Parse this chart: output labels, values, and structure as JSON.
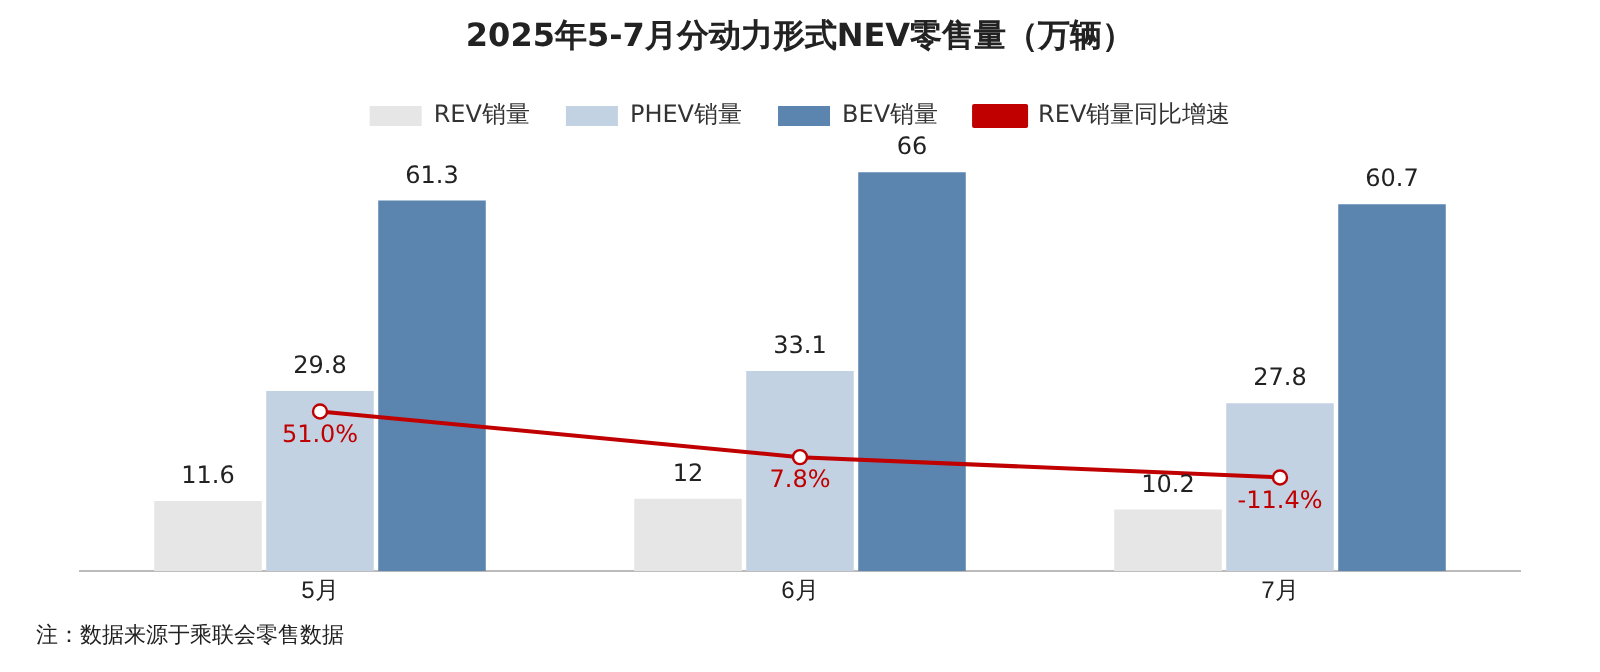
{
  "chart_data": {
    "type": "bar",
    "title": "2025年5-7月分动力形式NEV零售量（万辆）",
    "categories": [
      "5月",
      "6月",
      "7月"
    ],
    "series": [
      {
        "name": "REV销量",
        "color": "#e6e6e6",
        "values": [
          11.6,
          12,
          10.2
        ]
      },
      {
        "name": "PHEV销量",
        "color": "#c3d2e2",
        "values": [
          29.8,
          33.1,
          27.8
        ]
      },
      {
        "name": "BEV销量",
        "color": "#5b84ae",
        "values": [
          61.3,
          66,
          60.7
        ]
      },
      {
        "name": "REV销量同比增速",
        "type": "line",
        "axis": "y2",
        "color": "#c00000",
        "values": [
          51.0,
          7.8,
          -11.4
        ],
        "value_labels": [
          "51.0%",
          "7.8%",
          "-11.4%"
        ]
      }
    ],
    "data_labels": true,
    "legend": "top",
    "tick_labels": "x",
    "marker": "circle",
    "annotations": [
      "注：数据来源于乘联会零售数据"
    ]
  }
}
